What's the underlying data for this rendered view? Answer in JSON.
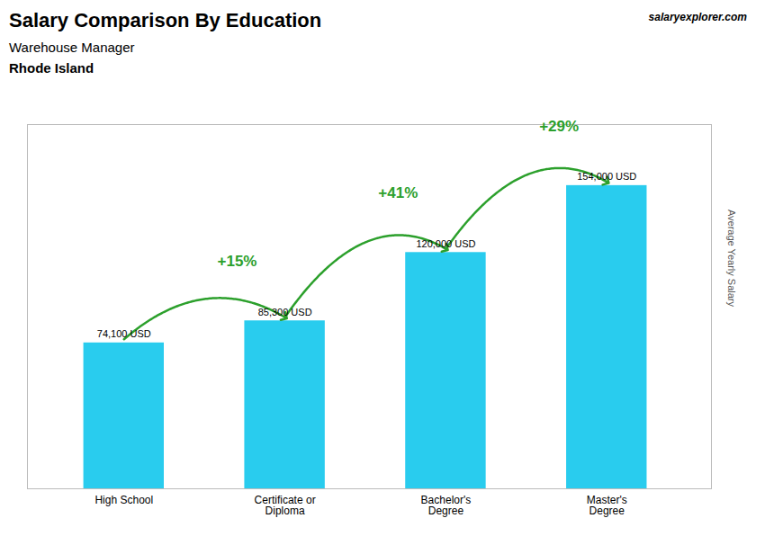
{
  "chart_data": {
    "type": "bar",
    "title": "Salary Comparison By Education",
    "subtitle": "Warehouse Manager",
    "annotations": [
      {
        "text": "Rhode Island"
      },
      {
        "text": "salaryexplorer.com"
      },
      {
        "text": "+15%",
        "from": "High School",
        "to": "Certificate or\nDiploma"
      },
      {
        "text": "+41%",
        "from": "Certificate or\nDiploma",
        "to": "Bachelor's\nDegree"
      },
      {
        "text": "+29%",
        "from": "Bachelor's\nDegree",
        "to": "Master's\nDegree"
      }
    ],
    "categories": [
      "High School",
      "Certificate or\nDiploma",
      "Bachelor's\nDegree",
      "Master's\nDegree"
    ],
    "values": [
      74100,
      85300,
      120000,
      154000
    ],
    "value_labels": [
      "74,100 USD",
      "85,300 USD",
      "120,000 USD",
      "154,000 USD"
    ],
    "data_labels": true,
    "color": "#29CCEE",
    "ylabel": "Average Yearly Salary",
    "ylim": [
      0,
      185000
    ],
    "tick_labels": "x"
  }
}
